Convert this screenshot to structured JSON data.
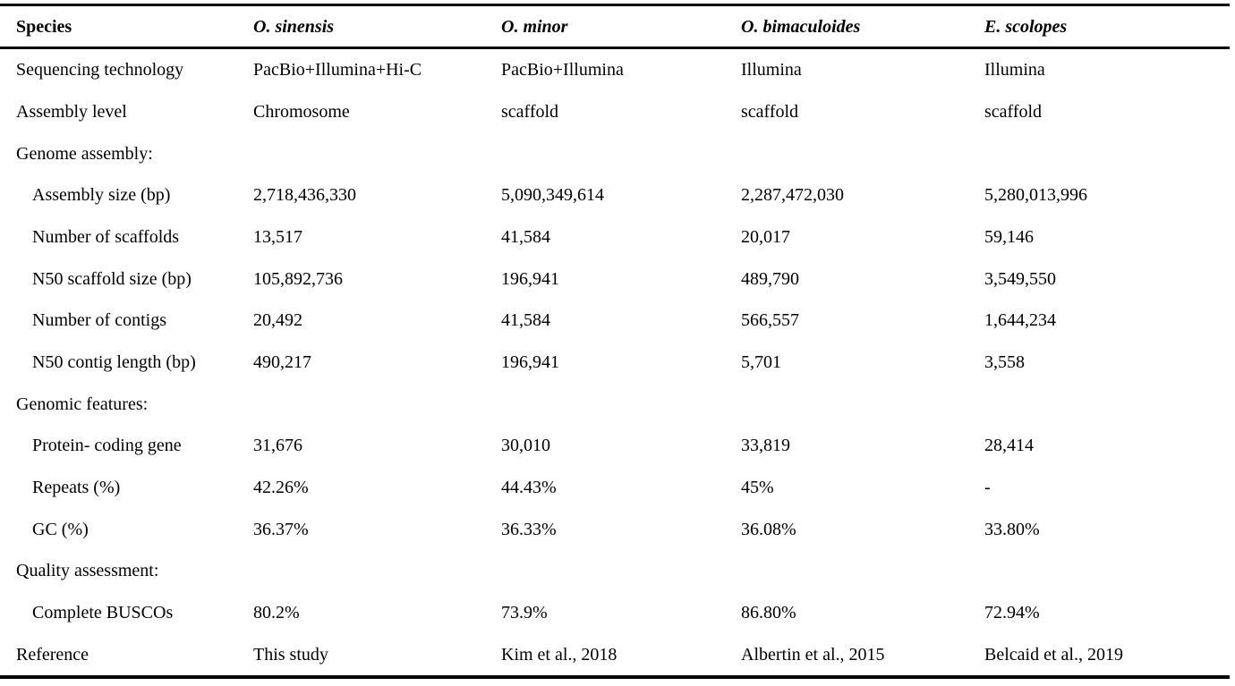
{
  "colors": {
    "text": "#000000",
    "background": "#ffffff",
    "rule": "#000000"
  },
  "table": {
    "header": {
      "label": "Species",
      "species": [
        "O. sinensis",
        "O. minor",
        "O. bimaculoides",
        "E. scolopes"
      ]
    },
    "rows": [
      {
        "label": "Sequencing technology",
        "section": false,
        "indent": false,
        "values": [
          "PacBio+Illumina+Hi-C",
          "PacBio+Illumina",
          "Illumina",
          "Illumina"
        ]
      },
      {
        "label": "Assembly level",
        "section": false,
        "indent": false,
        "values": [
          "Chromosome",
          "scaffold",
          "scaffold",
          "scaffold"
        ]
      },
      {
        "label": "Genome assembly:",
        "section": true,
        "indent": false,
        "values": [
          "",
          "",
          "",
          ""
        ]
      },
      {
        "label": "Assembly size (bp)",
        "section": false,
        "indent": true,
        "values": [
          "2,718,436,330",
          "5,090,349,614",
          "2,287,472,030",
          "5,280,013,996"
        ]
      },
      {
        "label": "Number of scaffolds",
        "section": false,
        "indent": true,
        "values": [
          "13,517",
          "41,584",
          "20,017",
          "59,146"
        ]
      },
      {
        "label": "N50 scaffold size (bp)",
        "section": false,
        "indent": true,
        "values": [
          "105,892,736",
          "196,941",
          "489,790",
          "3,549,550"
        ]
      },
      {
        "label": "Number of contigs",
        "section": false,
        "indent": true,
        "values": [
          "20,492",
          "41,584",
          "566,557",
          "1,644,234"
        ]
      },
      {
        "label": "N50 contig length (bp)",
        "section": false,
        "indent": true,
        "values": [
          "490,217",
          "196,941",
          "5,701",
          "3,558"
        ]
      },
      {
        "label": "Genomic features:",
        "section": true,
        "indent": false,
        "values": [
          "",
          "",
          "",
          ""
        ]
      },
      {
        "label": "Protein- coding gene",
        "section": false,
        "indent": true,
        "values": [
          "31,676",
          "30,010",
          "33,819",
          "28,414"
        ]
      },
      {
        "label": "Repeats (%)",
        "section": false,
        "indent": true,
        "values": [
          "42.26%",
          "44.43%",
          "45%",
          "-"
        ]
      },
      {
        "label": "GC (%)",
        "section": false,
        "indent": true,
        "values": [
          "36.37%",
          "36.33%",
          "36.08%",
          "33.80%"
        ]
      },
      {
        "label": "Quality assessment:",
        "section": true,
        "indent": false,
        "values": [
          "",
          "",
          "",
          ""
        ]
      },
      {
        "label": "Complete BUSCOs",
        "section": false,
        "indent": true,
        "values": [
          "80.2%",
          "73.9%",
          "86.80%",
          "72.94%"
        ]
      },
      {
        "label": "Reference",
        "section": false,
        "indent": false,
        "values": [
          "This study",
          "Kim et al., 2018",
          "Albertin et al., 2015",
          "Belcaid et al., 2019"
        ]
      }
    ]
  }
}
